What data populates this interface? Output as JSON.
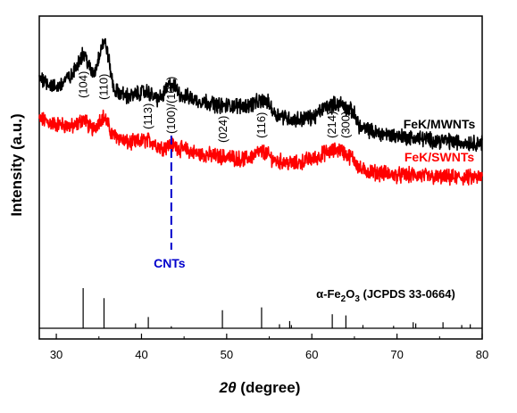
{
  "chart_data": {
    "type": "line",
    "xlabel_prefix": "2θ",
    "xlabel_suffix": " (degree)",
    "ylabel": "Intensity (a.u.)",
    "xlim": [
      28,
      80
    ],
    "xticks": [
      30,
      40,
      50,
      60,
      70,
      80
    ],
    "y_ticks_shown": false,
    "grid": false,
    "series": [
      {
        "name": "FeK/SWNTs",
        "color": "#ff0000",
        "x": [
          28,
          30,
          32,
          33.2,
          34.2,
          35.5,
          36.8,
          38.5,
          40.8,
          42.5,
          43.5,
          45,
          47,
          49.5,
          52,
          54.2,
          56,
          58,
          60,
          62,
          63.2,
          64.5,
          66,
          68,
          70,
          72,
          75,
          78,
          80
        ],
        "y": [
          0.6,
          0.58,
          0.57,
          0.6,
          0.56,
          0.61,
          0.53,
          0.5,
          0.51,
          0.48,
          0.49,
          0.47,
          0.45,
          0.44,
          0.43,
          0.46,
          0.42,
          0.41,
          0.43,
          0.46,
          0.47,
          0.44,
          0.38,
          0.37,
          0.36,
          0.36,
          0.35,
          0.35,
          0.35
        ],
        "label": "FeK/SWNTs"
      },
      {
        "name": "FeK/MWNTs",
        "color": "#000000",
        "x": [
          28,
          30,
          31.5,
          33.2,
          34.3,
          35.6,
          37,
          38.5,
          40.5,
          42,
          43.5,
          45,
          47,
          49.5,
          52,
          54.5,
          56,
          58,
          60,
          62,
          63.3,
          64.5,
          66,
          68,
          70,
          72,
          75,
          78,
          80
        ],
        "y": [
          0.78,
          0.74,
          0.78,
          0.88,
          0.8,
          0.93,
          0.72,
          0.7,
          0.72,
          0.69,
          0.75,
          0.7,
          0.68,
          0.66,
          0.66,
          0.68,
          0.62,
          0.6,
          0.61,
          0.66,
          0.67,
          0.64,
          0.56,
          0.54,
          0.53,
          0.52,
          0.51,
          0.5,
          0.5
        ],
        "label": "FeK/MWNTs"
      }
    ],
    "reference": {
      "label_parts": [
        "α-Fe",
        "2",
        "O",
        "3",
        " (JCPDS 33-0664)"
      ],
      "sticks": [
        {
          "x": 33.15,
          "h": 1.0
        },
        {
          "x": 35.6,
          "h": 0.75
        },
        {
          "x": 39.3,
          "h": 0.12
        },
        {
          "x": 40.8,
          "h": 0.28
        },
        {
          "x": 43.5,
          "h": 0.05
        },
        {
          "x": 49.5,
          "h": 0.45
        },
        {
          "x": 54.1,
          "h": 0.52
        },
        {
          "x": 56.2,
          "h": 0.1
        },
        {
          "x": 57.4,
          "h": 0.18
        },
        {
          "x": 57.6,
          "h": 0.08
        },
        {
          "x": 62.4,
          "h": 0.35
        },
        {
          "x": 64.0,
          "h": 0.32
        },
        {
          "x": 66.0,
          "h": 0.08
        },
        {
          "x": 69.6,
          "h": 0.06
        },
        {
          "x": 71.9,
          "h": 0.15
        },
        {
          "x": 72.2,
          "h": 0.12
        },
        {
          "x": 75.4,
          "h": 0.15
        },
        {
          "x": 77.6,
          "h": 0.08
        },
        {
          "x": 78.6,
          "h": 0.1
        }
      ]
    },
    "peak_labels": [
      {
        "text": "(104)",
        "x": 33.2
      },
      {
        "text": "(110)",
        "x": 35.6
      },
      {
        "text": "(113)",
        "x": 40.8
      },
      {
        "text": "(100)/(101)",
        "x": 43.5,
        "color": "#0000cc"
      },
      {
        "text": "(024)",
        "x": 49.6
      },
      {
        "text": "(116)",
        "x": 54.1
      },
      {
        "text": "(214)",
        "x": 62.4
      },
      {
        "text": "(300)",
        "x": 64.0
      }
    ],
    "cnt_marker": {
      "x": 43.5,
      "label": "CNTs",
      "color": "#0000cc"
    }
  }
}
